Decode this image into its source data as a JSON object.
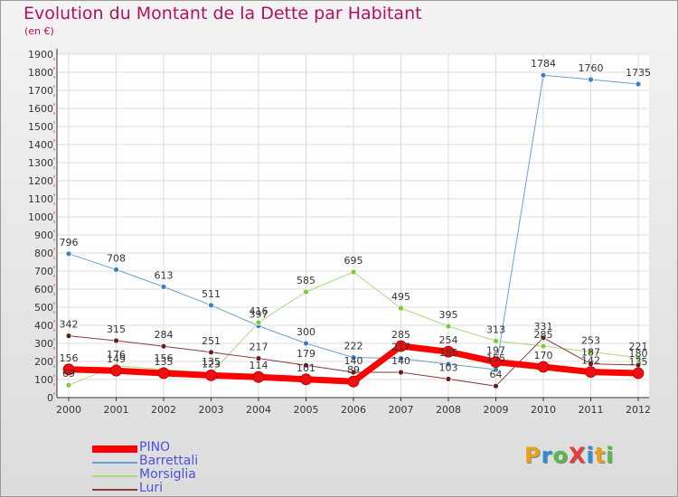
{
  "title": "Evolution du Montant de la Dette par Habitant",
  "subtitle": "(en €)",
  "logo": {
    "text": "ProXiti",
    "colors": [
      "#e8a11a",
      "#2a8fd6",
      "#5ab84a",
      "#e83c3c",
      "#2a8fd6",
      "#e8a11a",
      "#5ab84a"
    ]
  },
  "chart_data": {
    "type": "line",
    "x": [
      "2000",
      "2001",
      "2002",
      "2003",
      "2004",
      "2005",
      "2006",
      "2007",
      "2008",
      "2009",
      "2010",
      "2011",
      "2012"
    ],
    "ylim": [
      0,
      1900
    ],
    "yticks": [
      0,
      100,
      200,
      300,
      400,
      500,
      600,
      700,
      800,
      900,
      1000,
      1100,
      1200,
      1300,
      1400,
      1500,
      1600,
      1700,
      1800,
      1900
    ],
    "grid": true,
    "legend_position": "bottom-left",
    "series": [
      {
        "name": "Barrettali",
        "color": "#6aa0d0",
        "marker": "#3b82c4",
        "width": 1,
        "values": [
          796,
          708,
          613,
          511,
          397,
          300,
          222,
          217,
          185,
          155,
          1784,
          1760,
          1735
        ]
      },
      {
        "name": "Morsiglia",
        "color": "#a6dc78",
        "marker": "#7acc3a",
        "width": 1,
        "values": [
          69,
          176,
          156,
          135,
          416,
          585,
          695,
          495,
          395,
          313,
          285,
          253,
          221
        ]
      },
      {
        "name": "Luri",
        "color": "#8a3a3a",
        "marker": "#6b1c1c",
        "width": 1,
        "values": [
          342,
          315,
          284,
          251,
          217,
          179,
          140,
          140,
          103,
          64,
          331,
          187,
          180
        ]
      },
      {
        "name": "PINO",
        "color": "#ff0000",
        "marker": "#ee1010",
        "width": 7,
        "values": [
          156,
          149,
          135,
          123,
          114,
          101,
          89,
          285,
          254,
          197,
          170,
          142,
          135
        ]
      }
    ],
    "data_labels": [
      [
        "796",
        "708",
        "613",
        "511",
        "397",
        "300",
        "222",
        "217",
        "185",
        "155",
        "1784",
        "1760",
        "1735"
      ],
      [
        "69",
        "176",
        "156",
        "135",
        "416",
        "585",
        "695",
        "495",
        "395",
        "313",
        "285",
        "253",
        "221"
      ],
      [
        "342",
        "315",
        "284",
        "251",
        "217",
        "179",
        "140",
        "140",
        "103",
        "64",
        "331",
        "187",
        "180"
      ],
      [
        "156",
        "149",
        "135",
        "123",
        "114",
        "101",
        "89",
        "285",
        "254",
        "197",
        "170",
        "142",
        "135"
      ]
    ]
  }
}
